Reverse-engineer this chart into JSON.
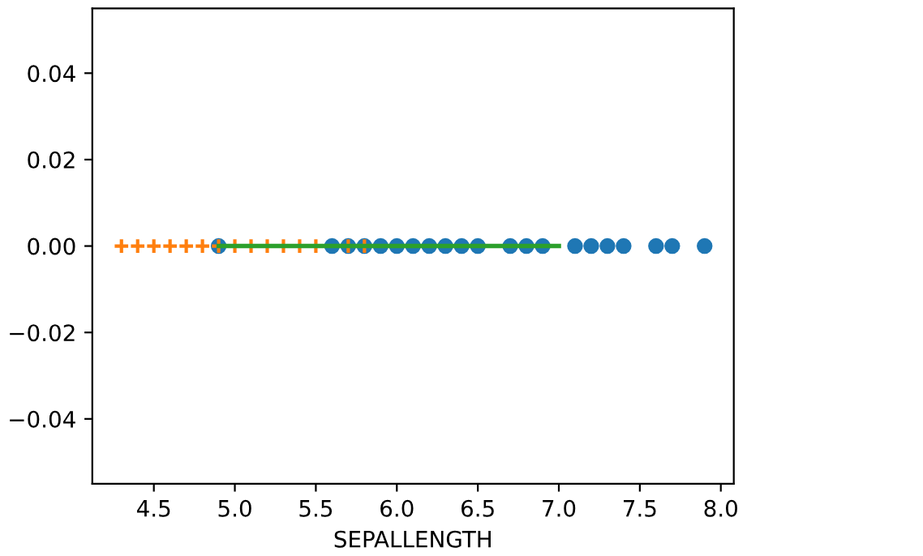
{
  "chart_data": {
    "type": "scatter",
    "xlabel": "SEPALLENGTH",
    "series": [
      {
        "marker": "circle",
        "color": "#1f77b4",
        "x": [
          4.9,
          5.6,
          5.7,
          5.8,
          5.9,
          6.0,
          6.1,
          6.2,
          6.3,
          6.4,
          6.5,
          6.7,
          6.8,
          6.9,
          7.1,
          7.2,
          7.3,
          7.4,
          7.6,
          7.7,
          7.9
        ],
        "values": [
          0,
          0,
          0,
          0,
          0,
          0,
          0,
          0,
          0,
          0,
          0,
          0,
          0,
          0,
          0,
          0,
          0,
          0,
          0,
          0,
          0
        ]
      },
      {
        "marker": "cross",
        "color": "#ff7f0e",
        "x": [
          4.3,
          4.4,
          4.5,
          4.6,
          4.7,
          4.8,
          4.9,
          5.0,
          5.1,
          5.2,
          5.3,
          5.4,
          5.5,
          5.7,
          5.8
        ],
        "values": [
          0,
          0,
          0,
          0,
          0,
          0,
          0,
          0,
          0,
          0,
          0,
          0,
          0,
          0,
          0
        ]
      },
      {
        "type": "line",
        "marker": "none",
        "color": "#2ca02c",
        "x": [
          4.9,
          5.0,
          5.1,
          5.2,
          5.4,
          5.5,
          5.6,
          5.7,
          5.8,
          5.9,
          6.0,
          6.1,
          6.2,
          6.3,
          6.4,
          6.5,
          6.6,
          6.7,
          6.8,
          6.9,
          7.0
        ],
        "values": [
          0,
          0,
          0,
          0,
          0,
          0,
          0,
          0,
          0,
          0,
          0,
          0,
          0,
          0,
          0,
          0,
          0,
          0,
          0,
          0,
          0
        ]
      }
    ],
    "xlim": [
      4.12,
      8.08
    ],
    "xticks": [
      4.5,
      {
        "value": 5,
        "label": "5.0"
      },
      5.5,
      {
        "value": 6,
        "label": "6.0"
      },
      6.5,
      {
        "value": 7,
        "label": "7.0"
      },
      7.5,
      {
        "value": 8,
        "label": "8.0"
      }
    ],
    "ylim": [
      -0.055,
      0.055
    ],
    "yticks": [
      {
        "value": -0.04,
        "label": "−0.04"
      },
      {
        "value": -0.02,
        "label": "−0.02"
      },
      {
        "value": 0,
        "label": "0.00"
      },
      0.02,
      0.04
    ],
    "grid": false,
    "legend": false
  }
}
